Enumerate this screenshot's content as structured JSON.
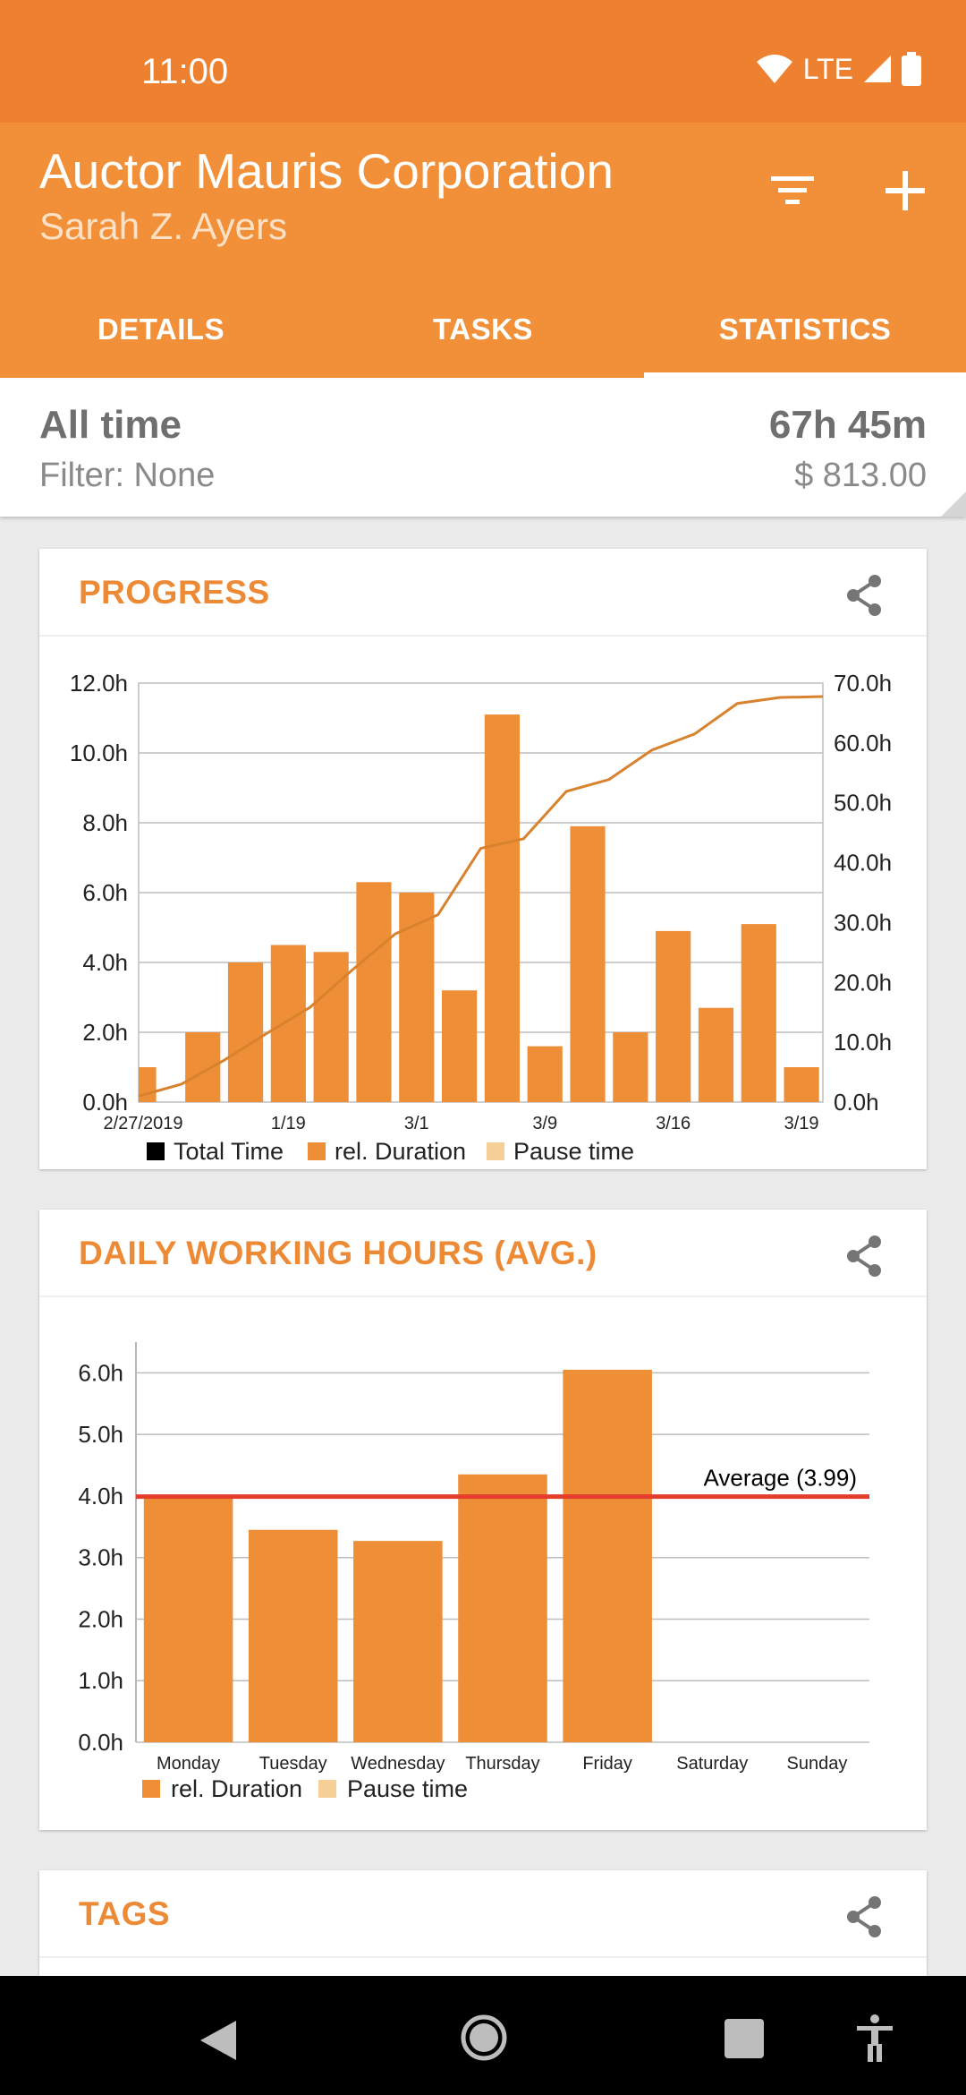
{
  "status_bar": {
    "time": "11:00",
    "network": "LTE"
  },
  "header": {
    "title": "Auctor Mauris Corporation",
    "subtitle": "Sarah Z. Ayers"
  },
  "tabs": [
    {
      "label": "DETAILS",
      "active": false
    },
    {
      "label": "TASKS",
      "active": false
    },
    {
      "label": "STATISTICS",
      "active": true
    }
  ],
  "summary": {
    "range": "All time",
    "filter": "Filter: None",
    "duration": "67h 45m",
    "amount": "$ 813.00"
  },
  "cards": {
    "progress_title": "PROGRESS",
    "daily_title": "DAILY WORKING HOURS (AVG.)",
    "tags_title": "TAGS"
  },
  "colors": {
    "accent": "#f19038",
    "statusbar": "#ee8130",
    "bar": "#ee8f38",
    "pause": "#f6cf96",
    "average_line": "#e53d2d",
    "line": "#d9822e"
  },
  "chart_data": [
    {
      "type": "bar",
      "title": "PROGRESS",
      "x_tick_labels": [
        "2/27/2019",
        "1/19",
        "3/1",
        "3/9",
        "3/16",
        "3/19"
      ],
      "y_left": {
        "ticks": [
          "0.0h",
          "2.0h",
          "4.0h",
          "6.0h",
          "8.0h",
          "10.0h",
          "12.0h"
        ],
        "range": [
          0,
          12
        ]
      },
      "y_right": {
        "ticks": [
          "0.0h",
          "10.0h",
          "20.0h",
          "30.0h",
          "40.0h",
          "50.0h",
          "60.0h",
          "70.0h"
        ],
        "range": [
          0,
          70
        ]
      },
      "series": [
        {
          "name": "rel. Duration",
          "axis": "left",
          "values": [
            1.0,
            2.0,
            4.0,
            4.5,
            4.3,
            6.3,
            6.0,
            3.2,
            11.1,
            1.6,
            7.9,
            2.0,
            4.9,
            2.7,
            5.1,
            1.0
          ]
        },
        {
          "name": "Total Time",
          "axis": "right",
          "values": [
            1.0,
            3.0,
            7.0,
            11.5,
            15.8,
            22.1,
            28.1,
            31.3,
            42.4,
            44.0,
            51.9,
            53.9,
            58.8,
            61.5,
            66.6,
            67.6,
            67.75
          ]
        }
      ],
      "legend": [
        "Total Time",
        "rel. Duration",
        "Pause time"
      ],
      "grid": true
    },
    {
      "type": "bar",
      "title": "DAILY WORKING HOURS (AVG.)",
      "categories": [
        "Monday",
        "Tuesday",
        "Wednesday",
        "Thursday",
        "Friday",
        "Saturday",
        "Sunday"
      ],
      "series": [
        {
          "name": "rel. Duration",
          "values": [
            4.0,
            3.45,
            3.27,
            4.35,
            6.05,
            0,
            0
          ]
        }
      ],
      "y_ticks": [
        "0.0h",
        "1.0h",
        "2.0h",
        "3.0h",
        "4.0h",
        "5.0h",
        "6.0h"
      ],
      "ylim": [
        0,
        6.5
      ],
      "average": {
        "label": "Average (3.99)",
        "value": 3.99
      },
      "legend": [
        "rel. Duration",
        "Pause time"
      ],
      "grid": true
    }
  ]
}
